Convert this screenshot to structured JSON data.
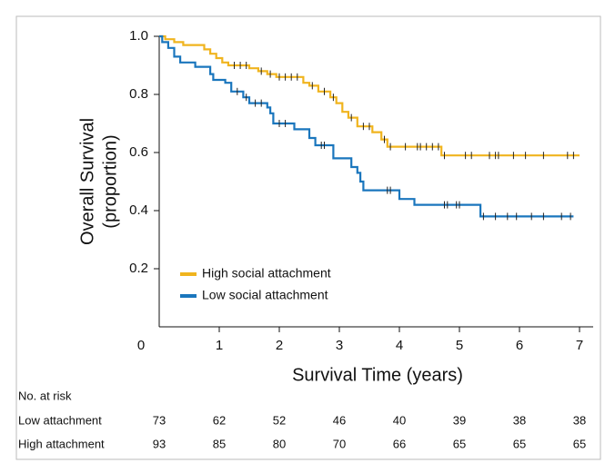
{
  "chart_data": {
    "type": "step",
    "x_label": "Survival Time (years)",
    "y_label": [
      "Overall Survival",
      "(proportion)"
    ],
    "xlim": [
      0,
      7
    ],
    "xticks": [
      0,
      1,
      2,
      3,
      4,
      5,
      6,
      7
    ],
    "ylim": [
      0,
      1
    ],
    "yticks": [
      0.2,
      0.4,
      0.6,
      0.8,
      {
        "value": 1,
        "label": "1.0"
      }
    ],
    "legend": "lower-left",
    "series": [
      {
        "name": "High social attachment",
        "color": "#f0b41e",
        "x": [
          0,
          0.1,
          0.25,
          0.4,
          0.75,
          0.85,
          0.95,
          1.05,
          1.15,
          1.5,
          1.65,
          1.8,
          1.95,
          2.4,
          2.5,
          2.65,
          2.85,
          2.95,
          3.05,
          3.15,
          3.3,
          3.55,
          3.7,
          3.8,
          4.7,
          7.0
        ],
        "values": [
          1.0,
          0.99,
          0.98,
          0.97,
          0.955,
          0.94,
          0.925,
          0.91,
          0.9,
          0.89,
          0.88,
          0.87,
          0.86,
          0.84,
          0.83,
          0.81,
          0.79,
          0.77,
          0.74,
          0.72,
          0.69,
          0.67,
          0.645,
          0.62,
          0.59,
          0.59
        ],
        "censor_times": [
          1.25,
          1.35,
          1.45,
          1.7,
          1.85,
          2.0,
          2.1,
          2.2,
          2.3,
          2.55,
          2.75,
          2.9,
          3.2,
          3.4,
          3.5,
          3.75,
          3.85,
          4.1,
          4.3,
          4.35,
          4.45,
          4.55,
          4.65,
          4.75,
          5.1,
          5.2,
          5.5,
          5.6,
          5.65,
          5.9,
          6.1,
          6.4,
          6.8,
          6.9
        ]
      },
      {
        "name": "Low social attachment",
        "color": "#1a76bd",
        "x": [
          0,
          0.05,
          0.15,
          0.25,
          0.35,
          0.6,
          0.85,
          0.9,
          1.1,
          1.2,
          1.4,
          1.5,
          1.8,
          1.85,
          1.9,
          2.25,
          2.5,
          2.6,
          2.9,
          3.2,
          3.3,
          3.35,
          3.4,
          4.0,
          4.25,
          5.35,
          6.9
        ],
        "values": [
          1.0,
          0.98,
          0.96,
          0.93,
          0.91,
          0.895,
          0.87,
          0.85,
          0.84,
          0.81,
          0.79,
          0.77,
          0.755,
          0.735,
          0.7,
          0.68,
          0.65,
          0.625,
          0.58,
          0.55,
          0.53,
          0.5,
          0.47,
          0.44,
          0.42,
          0.38,
          0.38
        ],
        "censor_times": [
          1.3,
          1.45,
          1.6,
          1.7,
          2.0,
          2.1,
          2.7,
          2.75,
          3.8,
          3.85,
          4.75,
          4.8,
          4.95,
          5.0,
          5.4,
          5.6,
          5.8,
          5.95,
          6.2,
          6.4,
          6.7,
          6.85
        ]
      }
    ],
    "risk_table": {
      "title": "No. at risk",
      "rows": [
        {
          "label": "Low attachment",
          "values": [
            73,
            62,
            52,
            46,
            40,
            39,
            38,
            38
          ]
        },
        {
          "label": "High attachment",
          "values": [
            93,
            85,
            80,
            70,
            66,
            65,
            65,
            65
          ]
        }
      ]
    }
  }
}
